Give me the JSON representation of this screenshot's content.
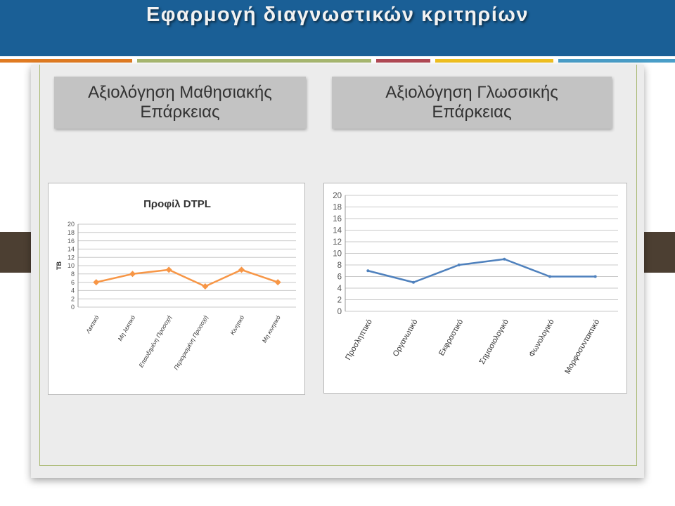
{
  "slide": {
    "title": "Εφαρμογή διαγνωστικών κριτηρίων",
    "left_heading": "Αξιολόγηση Μαθησιακής Επάρκειας",
    "right_heading": "Αξιολόγηση Γλωσσικής Επάρκειας"
  },
  "colors": {
    "title_bar": "#1a5f96",
    "accent_orange": "#e07b22",
    "accent_green": "#a8b870",
    "accent_red": "#b24a55",
    "accent_yellow": "#f0c020",
    "accent_blue": "#4a9ec8",
    "left_series": "#f79646",
    "right_series": "#4f81bd"
  },
  "chart_data": [
    {
      "type": "line",
      "title": "Προφίλ DTPL",
      "ylabel": "TB",
      "xlabel": "",
      "categories": [
        "Λεκτικό",
        "Μη λεκτικό",
        "Επαυξημένη Προσοχή",
        "Περιορισμένη Προσοχή",
        "Κινητικό",
        "Μη κινητικό"
      ],
      "series": [
        {
          "values": [
            6,
            8,
            9,
            5,
            9,
            6
          ]
        }
      ],
      "ylim": [
        0,
        20
      ],
      "yticks": [
        "0",
        "2",
        "4",
        "6",
        "8",
        "10",
        "12",
        "14",
        "16",
        "18",
        "20"
      ],
      "grid": true,
      "markers": "diamond"
    },
    {
      "type": "line",
      "title": "",
      "ylabel": "",
      "xlabel": "",
      "categories": [
        "Προσληπτικό",
        "Οργανωτικό",
        "Εκφραστικό",
        "Σημασιολογικό",
        "Φωνολογικό",
        "Μορφοσυντακτικό"
      ],
      "series": [
        {
          "values": [
            7,
            5,
            8,
            9,
            6,
            6
          ]
        }
      ],
      "ylim": [
        0,
        20
      ],
      "yticks": [
        "0",
        "2",
        "4",
        "6",
        "8",
        "10",
        "12",
        "14",
        "16",
        "18",
        "20"
      ],
      "grid": true,
      "markers": "none"
    }
  ]
}
